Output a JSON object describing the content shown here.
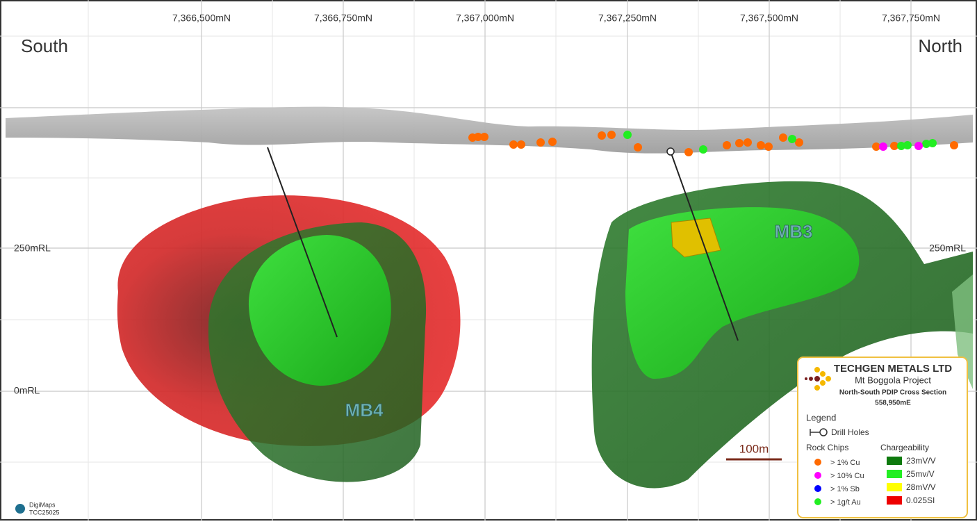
{
  "header": {
    "south": "South",
    "north": "North"
  },
  "northings": [
    "7,366,500mN",
    "7,366,750mN",
    "7,367,000mN",
    "7,367,250mN",
    "7,367,500mN",
    "7,367,750mN"
  ],
  "levels": [
    "250mRL",
    "0mRL"
  ],
  "bodies": [
    "MB4",
    "MB3"
  ],
  "scale_bar": "100m",
  "legend": {
    "company": "TECHGEN METALS LTD",
    "project": "Mt Boggola Project",
    "section": "North-South PDIP Cross Section",
    "easting": "558,950mE",
    "title": "Legend",
    "drill_holes": "Drill Holes",
    "rock_chips_title": "Rock Chips",
    "chargeability_title": "Chargeability",
    "rock_chips": [
      {
        "label": "> 1% Cu",
        "color": "#ff6a00"
      },
      {
        "label": "> 10% Cu",
        "color": "#ff00ff"
      },
      {
        "label": "> 1% Sb",
        "color": "#0000ff"
      },
      {
        "label": "> 1g/t Au",
        "color": "#22ee22"
      }
    ],
    "chargeability": [
      {
        "label": "23mV/V",
        "color": "#0e7a0e"
      },
      {
        "label": "25mv/V",
        "color": "#22ee22"
      },
      {
        "label": "28mV/V",
        "color": "#ffff00"
      },
      {
        "label": "0.025SI",
        "color": "#ee0000"
      }
    ]
  },
  "footer": {
    "brand": "DigiMaps",
    "code": "TCC25025"
  }
}
